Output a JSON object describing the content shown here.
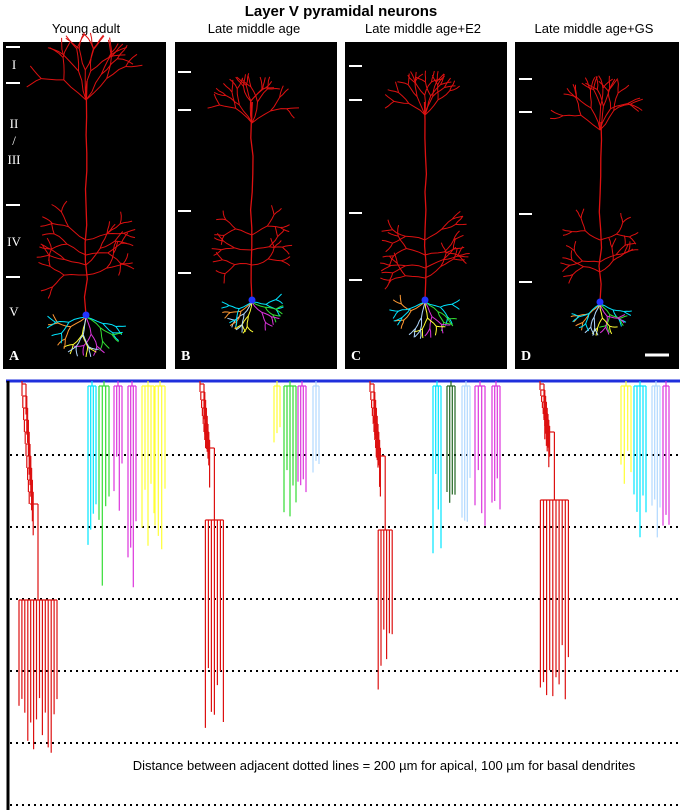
{
  "figure_title": "Layer V pyramidal neurons",
  "panels": [
    {
      "title": "Young adult",
      "letter": "A"
    },
    {
      "title": "Late middle age",
      "letter": "B"
    },
    {
      "title": "Late middle age+E2",
      "letter": "C"
    },
    {
      "title": "Late middle age+GS",
      "letter": "D"
    }
  ],
  "layer_labels": [
    "I",
    "II",
    "/",
    "III",
    "IV",
    "V"
  ],
  "caption": "Distance between adjacent dotted lines = 200 µm for apical, 100 µm for basal dendrites",
  "colors": {
    "panel_background": "#000000",
    "apical": "#dd1111",
    "soma": "#2233ff",
    "baseline": "#1f2fdc",
    "basal": [
      "#00e5ff",
      "#33dd33",
      "#dd33dd",
      "#ffff33",
      "#b0d8ff",
      "#ff9933",
      "#ffffff",
      "#226622"
    ]
  }
}
